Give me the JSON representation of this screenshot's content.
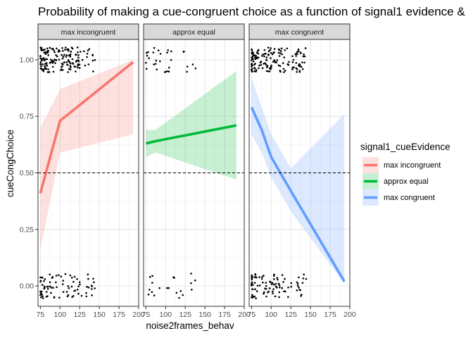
{
  "chart_data": {
    "type": "line",
    "title": "Probability of making a cue-congruent choice as a function of signal1 evidence &",
    "xlabel": "noise2frames_behav",
    "ylabel": "cueCongChoice",
    "xlim": [
      72,
      200
    ],
    "ylim": [
      -0.09,
      1.09
    ],
    "x_ticks": [
      75,
      100,
      125,
      150,
      175,
      200
    ],
    "y_ticks": [
      0.0,
      0.25,
      0.5,
      0.75,
      1.0
    ],
    "y_tick_labels": [
      "0.00",
      "0.25",
      "0.50",
      "0.75",
      "1.00"
    ],
    "reference_line": {
      "y": 0.5,
      "style": "dashed"
    },
    "grid": true,
    "legend": {
      "title": "signal1_cueEvidence",
      "placement": "right",
      "entries": [
        "max incongruent",
        "approx equal",
        "max congruent"
      ]
    },
    "facets": [
      {
        "strip": "max incongruent",
        "series": {
          "name": "max incongruent",
          "color": "#F8766D",
          "x": [
            75,
            100,
            193
          ],
          "y": [
            0.41,
            0.73,
            0.99
          ],
          "ci_lower": [
            0.16,
            0.59,
            0.67
          ],
          "ci_upper": [
            0.7,
            0.87,
            1.0
          ]
        },
        "points_top_count": 160,
        "points_bottom_count": 80
      },
      {
        "strip": "approx equal",
        "series": {
          "name": "approx equal",
          "color": "#00BA38",
          "x": [
            75,
            87,
            190
          ],
          "y": [
            0.63,
            0.64,
            0.71
          ],
          "ci_lower": [
            0.57,
            0.59,
            0.47
          ],
          "ci_upper": [
            0.69,
            0.69,
            0.95
          ]
        },
        "points_top_count": 30,
        "points_bottom_count": 20
      },
      {
        "strip": "max congruent",
        "series": {
          "name": "max congruent",
          "color": "#619CFF",
          "x": [
            75,
            88,
            100,
            125,
            193
          ],
          "y": [
            0.79,
            0.69,
            0.57,
            0.42,
            0.02
          ],
          "ci_lower": [
            0.67,
            0.59,
            0.48,
            0.33,
            0.01
          ],
          "ci_upper": [
            0.92,
            0.79,
            0.67,
            0.52,
            0.76
          ]
        },
        "points_top_count": 150,
        "points_bottom_count": 90
      }
    ]
  }
}
